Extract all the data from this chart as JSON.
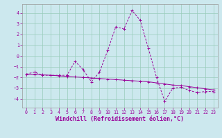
{
  "x_values": [
    0,
    1,
    2,
    3,
    4,
    5,
    6,
    7,
    8,
    9,
    10,
    11,
    12,
    13,
    14,
    15,
    16,
    17,
    18,
    19,
    20,
    21,
    22,
    23
  ],
  "line1_y": [
    -1.7,
    -1.5,
    -1.8,
    -1.8,
    -1.8,
    -1.8,
    -0.5,
    -1.3,
    -2.4,
    -1.5,
    0.5,
    2.7,
    2.5,
    4.2,
    3.3,
    0.7,
    -2.0,
    -4.2,
    -3.0,
    -2.9,
    -3.2,
    -3.4,
    -3.3,
    -3.3
  ],
  "line2_y": [
    -1.7,
    -1.7,
    -1.75,
    -1.8,
    -1.85,
    -1.9,
    -1.95,
    -2.0,
    -2.05,
    -2.1,
    -2.15,
    -2.2,
    -2.25,
    -2.3,
    -2.35,
    -2.4,
    -2.5,
    -2.6,
    -2.7,
    -2.75,
    -2.85,
    -2.95,
    -3.05,
    -3.15
  ],
  "line_color": "#990099",
  "bg_color": "#cce8ee",
  "grid_color": "#99ccbb",
  "xlabel": "Windchill (Refroidissement éolien,°C)",
  "ylim": [
    -4.8,
    4.8
  ],
  "xlim": [
    -0.5,
    23.5
  ],
  "yticks": [
    -4,
    -3,
    -2,
    -1,
    0,
    1,
    2,
    3,
    4
  ],
  "xticks": [
    0,
    1,
    2,
    3,
    4,
    5,
    6,
    7,
    8,
    9,
    10,
    11,
    12,
    13,
    14,
    15,
    16,
    17,
    18,
    19,
    20,
    21,
    22,
    23
  ],
  "tick_label_fontsize": 4.8,
  "xlabel_fontsize": 6.0,
  "marker": "+"
}
